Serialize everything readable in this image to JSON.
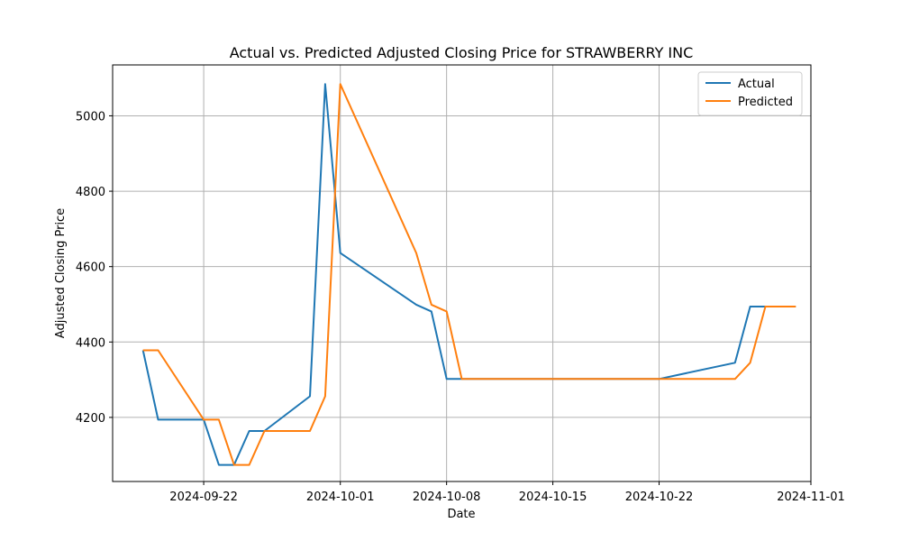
{
  "chart_data": {
    "type": "line",
    "title": "Actual vs. Predicted Adjusted Closing Price for STRAWBERRY INC",
    "xlabel": "Date",
    "ylabel": "Adjusted Closing Price",
    "x_ticks": [
      "2024-09-22",
      "2024-10-01",
      "2024-10-08",
      "2024-10-15",
      "2024-10-22",
      "2024-11-01"
    ],
    "y_ticks": [
      4200,
      4400,
      4600,
      4800,
      5000
    ],
    "xlim": [
      "2024-09-16",
      "2024-11-01"
    ],
    "ylim": [
      4030,
      5135
    ],
    "grid": true,
    "legend_position": "top-right",
    "series": [
      {
        "name": "Actual",
        "color": "#1f77b4",
        "points": [
          [
            "2024-09-18",
            4378
          ],
          [
            "2024-09-19",
            4194
          ],
          [
            "2024-09-22",
            4194
          ],
          [
            "2024-09-23",
            4074
          ],
          [
            "2024-09-24",
            4074
          ],
          [
            "2024-09-25",
            4164
          ],
          [
            "2024-09-26",
            4164
          ],
          [
            "2024-09-29",
            4256
          ],
          [
            "2024-09-30",
            5084
          ],
          [
            "2024-10-01",
            4636
          ],
          [
            "2024-10-06",
            4499
          ],
          [
            "2024-10-07",
            4481
          ],
          [
            "2024-10-08",
            4302
          ],
          [
            "2024-10-22",
            4302
          ],
          [
            "2024-10-27",
            4345
          ],
          [
            "2024-10-28",
            4494
          ],
          [
            "2024-10-29",
            4494
          ],
          [
            "2024-10-31",
            4494
          ]
        ]
      },
      {
        "name": "Predicted",
        "color": "#ff7f0e",
        "points": [
          [
            "2024-09-18",
            4378
          ],
          [
            "2024-09-19",
            4378
          ],
          [
            "2024-09-22",
            4194
          ],
          [
            "2024-09-23",
            4194
          ],
          [
            "2024-09-24",
            4074
          ],
          [
            "2024-09-25",
            4074
          ],
          [
            "2024-09-26",
            4164
          ],
          [
            "2024-09-29",
            4164
          ],
          [
            "2024-09-30",
            4256
          ],
          [
            "2024-10-01",
            5084
          ],
          [
            "2024-10-06",
            4636
          ],
          [
            "2024-10-07",
            4499
          ],
          [
            "2024-10-08",
            4481
          ],
          [
            "2024-10-09",
            4302
          ],
          [
            "2024-10-27",
            4302
          ],
          [
            "2024-10-28",
            4345
          ],
          [
            "2024-10-29",
            4494
          ],
          [
            "2024-10-31",
            4494
          ]
        ]
      }
    ]
  }
}
